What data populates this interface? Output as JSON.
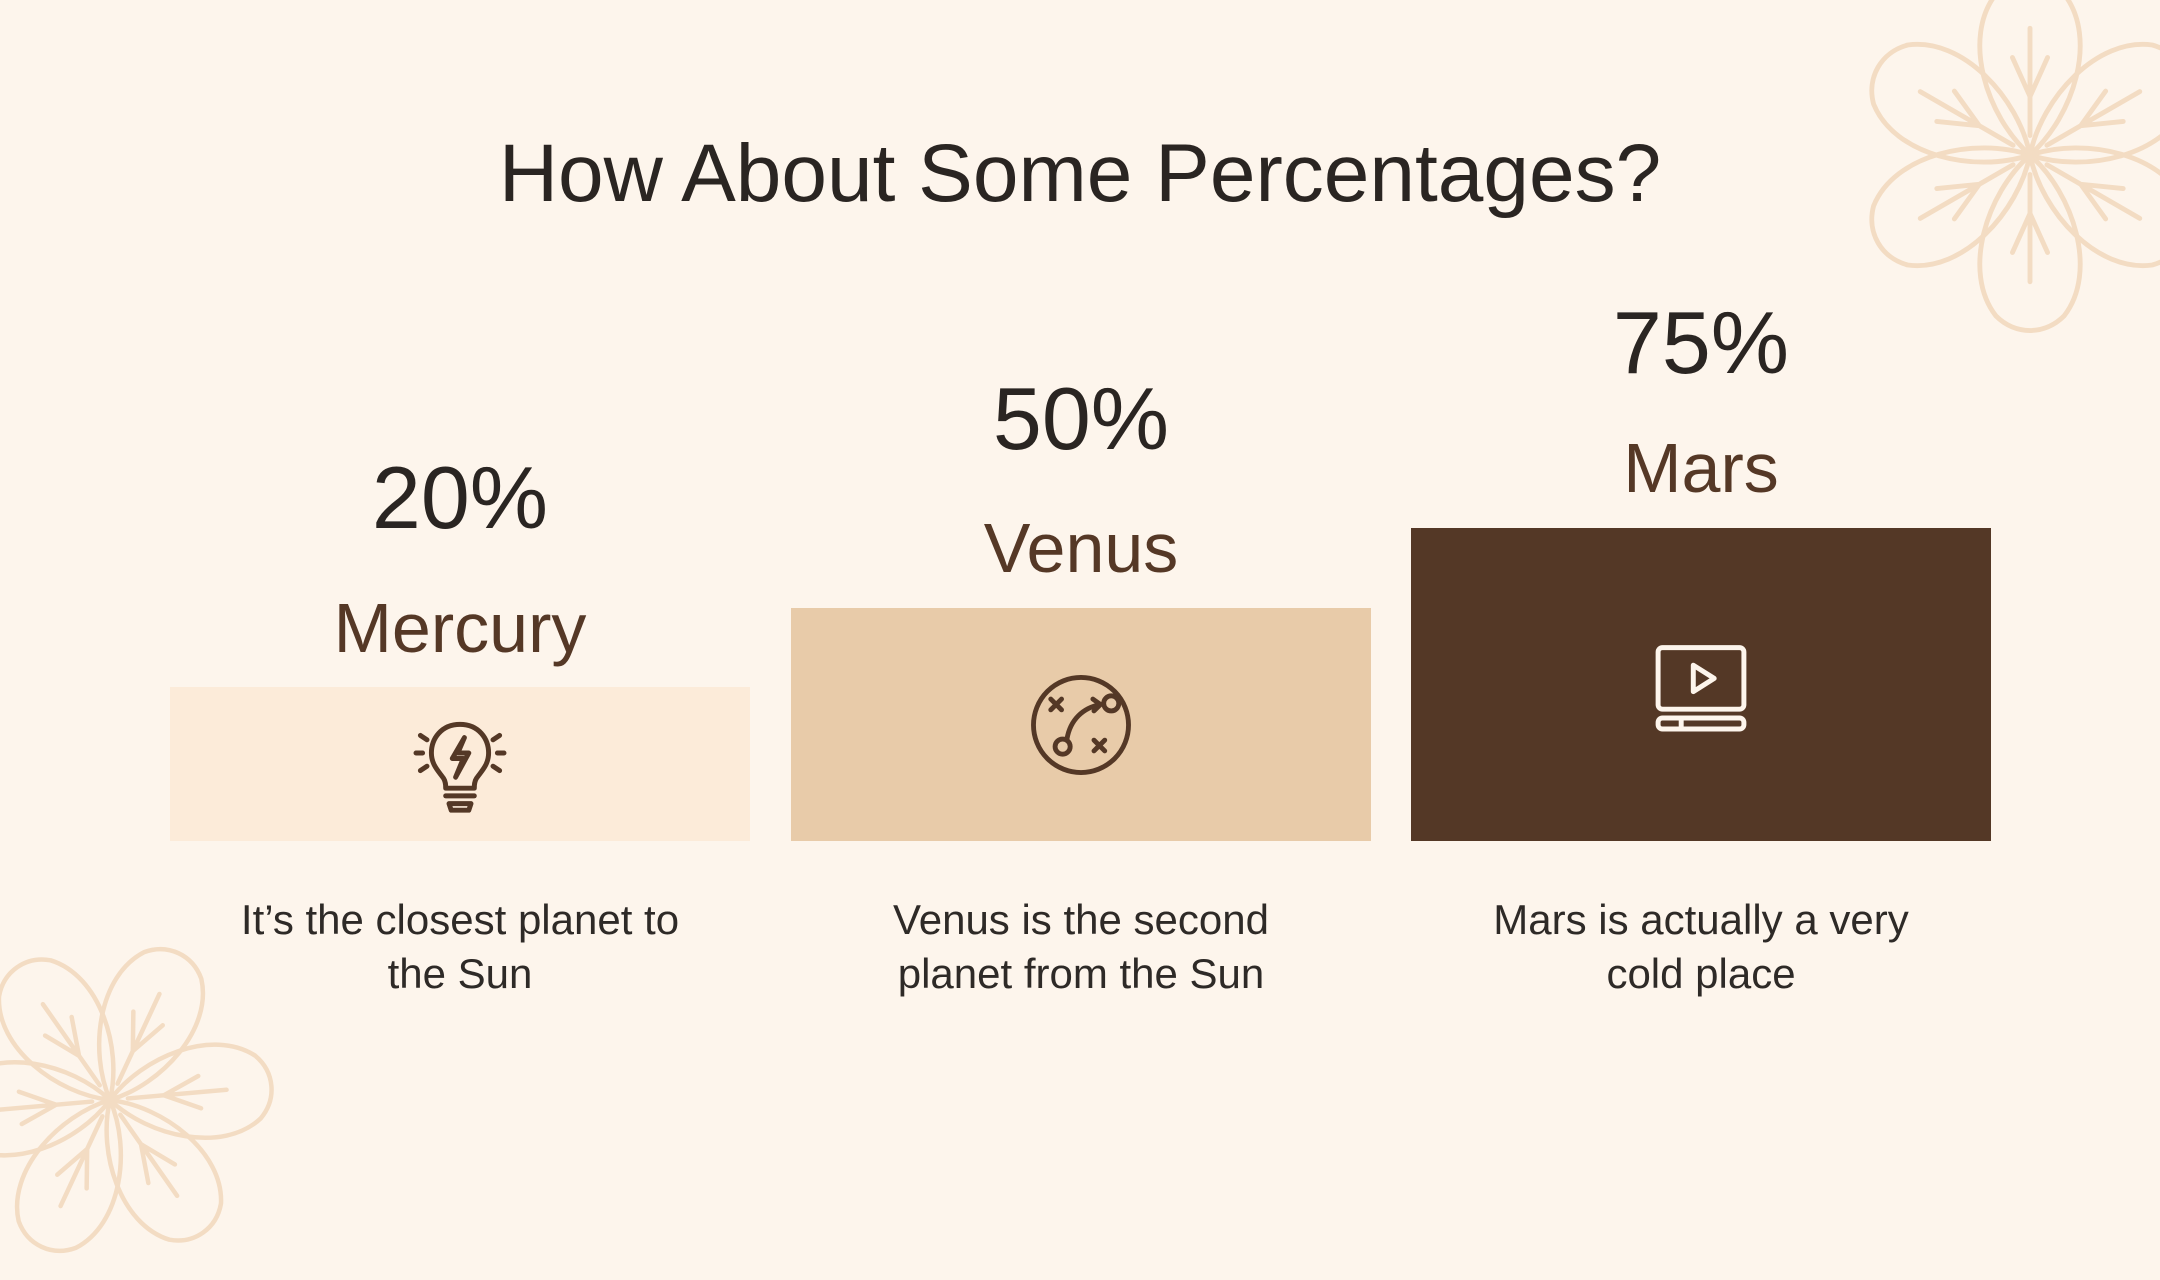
{
  "slide": {
    "title": "How About Some Percentages?"
  },
  "columns": [
    {
      "percent_label": "20%",
      "planet": "Mercury",
      "description_lines": [
        "It’s the closest planet to",
        "the Sun"
      ],
      "icon": "lightbulb-icon",
      "value": 20,
      "bar_color": "#fcebd9"
    },
    {
      "percent_label": "50%",
      "planet": "Venus",
      "description_lines": [
        "Venus is the second",
        "planet from the Sun"
      ],
      "icon": "strategy-icon",
      "value": 50,
      "bar_color": "#e8cba9"
    },
    {
      "percent_label": "75%",
      "planet": "Mars",
      "description_lines": [
        "Mars is actually a very",
        "cold place"
      ],
      "icon": "video-play-icon",
      "value": 75,
      "bar_color": "#543826"
    }
  ],
  "colors": {
    "background": "#fdf5ec",
    "title_text": "#2a2522",
    "planet_text": "#553826",
    "icon_dark": "#543826",
    "icon_light": "#fdf5ec",
    "decoration": "#f3dcc3"
  }
}
